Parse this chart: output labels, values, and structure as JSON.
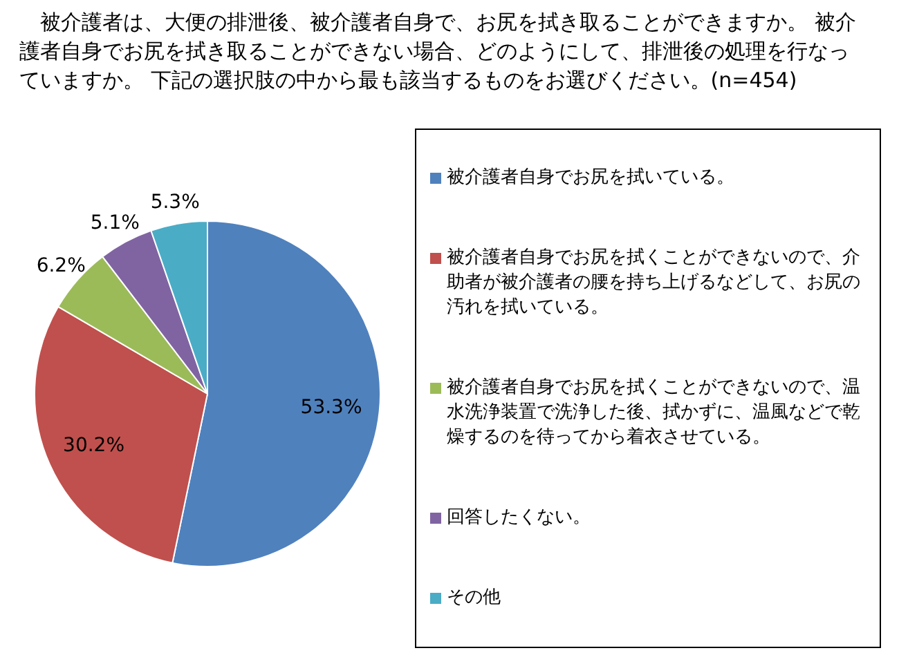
{
  "chart_data": {
    "type": "pie",
    "title": "被介護者は、大便の排泄後、被介護者自身で、お尻を拭き取ることができますか。 被介護者自身でお尻を拭き取ることができない場合、どのようにして、排泄後の処理を行なっていますか。 下記の選択肢の中から最も該当するものをお選びください。(n=454)",
    "categories": [
      "被介護者自身でお尻を拭いている。",
      "被介護者自身でお尻を拭くことができないので、介助者が被介護者の腰を持ち上げるなどして、お尻の汚れを拭いている。",
      "被介護者自身でお尻を拭くことができないので、温水洗浄装置で洗浄した後、拭かずに、温風などで乾燥するのを待ってから着衣させている。",
      "回答したくない。",
      "その他"
    ],
    "values": [
      53.3,
      30.2,
      6.2,
      5.1,
      5.3
    ],
    "value_labels": [
      "53.3%",
      "30.2%",
      "6.2%",
      "5.1%",
      "5.3%"
    ],
    "colors": [
      "#4f81bd",
      "#c0504d",
      "#9bbb59",
      "#8064a2",
      "#4bacc6"
    ],
    "legend": "right"
  }
}
